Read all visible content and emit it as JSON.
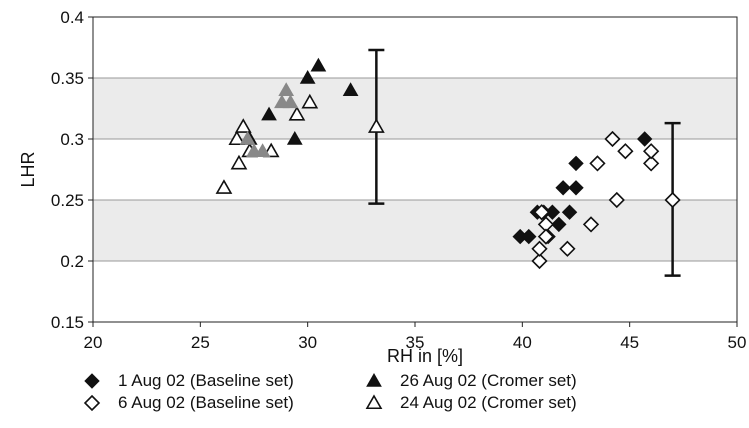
{
  "chart_data": {
    "type": "scatter",
    "title": "",
    "xlabel": "RH in [%]",
    "ylabel": "LHR",
    "xlim": [
      20,
      50
    ],
    "ylim": [
      0.15,
      0.4
    ],
    "xticks": [
      20,
      25,
      30,
      35,
      40,
      45,
      50
    ],
    "yticks": [
      "0.15",
      "0.2",
      "0.25",
      "0.3",
      "0.35",
      "0.4"
    ],
    "grid": "horizontal",
    "bands": [
      {
        "ymin": 0.2,
        "ymax": 0.25,
        "color": "#ebebeb"
      },
      {
        "ymin": 0.3,
        "ymax": 0.35,
        "color": "#ebebeb"
      }
    ],
    "legend_position": "bottom",
    "series": [
      {
        "name": "1 Aug 02 (Baseline set)",
        "marker": "diamond-filled",
        "color": "#111111",
        "points": [
          [
            39.9,
            0.22
          ],
          [
            40.3,
            0.22
          ],
          [
            40.7,
            0.24
          ],
          [
            41.0,
            0.24
          ],
          [
            41.2,
            0.22
          ],
          [
            41.4,
            0.24
          ],
          [
            41.7,
            0.23
          ],
          [
            41.9,
            0.26
          ],
          [
            42.2,
            0.24
          ],
          [
            42.5,
            0.26
          ],
          [
            42.5,
            0.28
          ],
          [
            45.7,
            0.3
          ]
        ]
      },
      {
        "name": "6 Aug 02 (Baseline set)",
        "marker": "diamond-open",
        "color": "#111111",
        "points": [
          [
            40.8,
            0.2
          ],
          [
            40.8,
            0.21
          ],
          [
            40.9,
            0.24
          ],
          [
            41.1,
            0.23
          ],
          [
            41.1,
            0.22
          ],
          [
            42.1,
            0.21
          ],
          [
            43.2,
            0.23
          ],
          [
            43.5,
            0.28
          ],
          [
            44.2,
            0.3
          ],
          [
            44.4,
            0.25
          ],
          [
            44.8,
            0.29
          ],
          [
            46.0,
            0.28
          ],
          [
            46.0,
            0.29
          ]
        ]
      },
      {
        "name": "26 Aug 02 (Cromer set)",
        "marker": "triangle-filled",
        "color": "#111111",
        "points": [
          [
            27.3,
            0.3
          ],
          [
            28.2,
            0.32
          ],
          [
            29.4,
            0.3
          ],
          [
            30.0,
            0.35
          ],
          [
            30.5,
            0.36
          ],
          [
            32.0,
            0.34
          ]
        ]
      },
      {
        "name": "24 Aug 02 (Cromer set)",
        "marker": "triangle-open",
        "color": "#111111",
        "points": [
          [
            26.1,
            0.26
          ],
          [
            26.7,
            0.3
          ],
          [
            26.8,
            0.28
          ],
          [
            27.0,
            0.31
          ],
          [
            27.3,
            0.29
          ],
          [
            28.3,
            0.29
          ],
          [
            29.5,
            0.32
          ],
          [
            30.1,
            0.33
          ]
        ]
      },
      {
        "name": "",
        "marker": "triangle-filled",
        "color": "#888888",
        "points": [
          [
            27.2,
            0.3
          ],
          [
            27.5,
            0.29
          ],
          [
            27.9,
            0.29
          ],
          [
            28.8,
            0.33
          ],
          [
            29.0,
            0.34
          ],
          [
            29.2,
            0.33
          ]
        ]
      }
    ],
    "error_bars": [
      {
        "x": 33.2,
        "y": 0.31,
        "ymin": 0.247,
        "ymax": 0.373,
        "marker": "triangle-open"
      },
      {
        "x": 47.0,
        "y": 0.25,
        "ymin": 0.188,
        "ymax": 0.313,
        "marker": "diamond-open"
      }
    ]
  }
}
